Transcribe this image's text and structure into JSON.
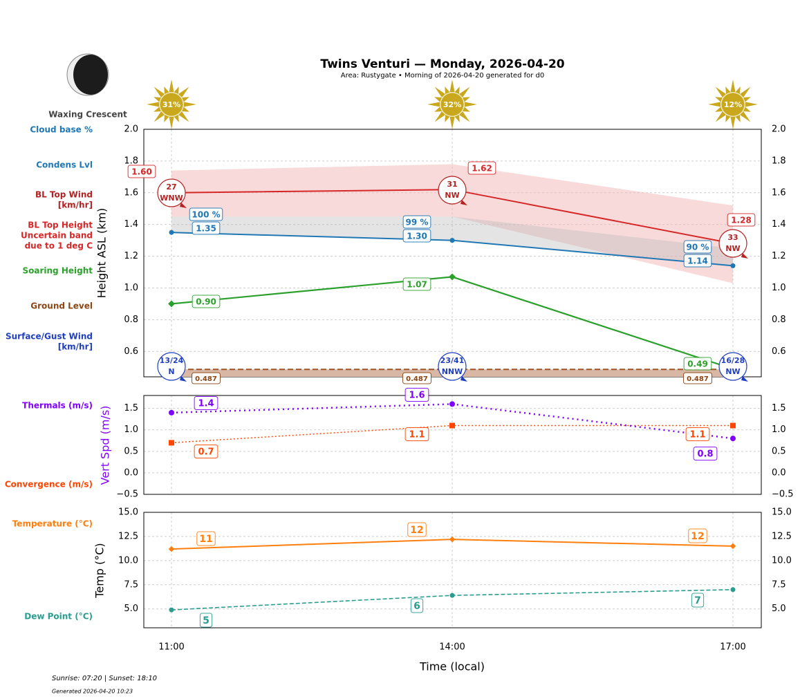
{
  "title": "Twins Venturi — Monday, 2026-04-20",
  "subtitle": "Area: Rustygate • Morning of 2026-04-20 generated for d0",
  "moon_phase": "Waxing Crescent",
  "footer": {
    "sun": "Sunrise: 07:20 | Sunset: 18:10",
    "generated": "Generated 2026-04-20 10:23"
  },
  "side_labels": {
    "cloud_base": "Cloud base %",
    "condens": "Condens Lvl",
    "bl_wind": [
      "BL Top Wind",
      "[km/hr]"
    ],
    "bl_band": [
      "BL Top Height",
      "Uncertain band",
      "due to 1 deg C"
    ],
    "soaring": "Soaring Height",
    "ground": "Ground Level",
    "surface_wind": [
      "Surface/Gust Wind",
      "[km/hr]"
    ],
    "thermals": "Thermals (m/s)",
    "convergence": "Convergence (m/s)",
    "temperature": "Temperature (°C)",
    "dew": "Dew Point (°C)"
  },
  "colors": {
    "bl": "#d62728",
    "condens": "#1f77b4",
    "soaring": "#2ca02c",
    "ground": "#8b4513",
    "surface": "#1f3fbf",
    "thermal": "#8000ff",
    "conv": "#ff4500",
    "temp": "#ff7f0e",
    "dew": "#2a9d8f",
    "sun": "#c9a81e"
  },
  "chart_data": [
    {
      "type": "line",
      "ylabel": "Height ASL (km)",
      "ylim": [
        0.44,
        2.0
      ],
      "yticks": [
        "0.6",
        "0.8",
        "1.0",
        "1.2",
        "1.4",
        "1.6",
        "1.8",
        "2.0"
      ],
      "categories": [
        "11:00",
        "14:00",
        "17:00"
      ],
      "grid": true,
      "sun_percent": [
        31,
        32,
        12
      ],
      "bl_top": [
        1.6,
        1.62,
        1.28
      ],
      "bl_band_upper": [
        1.74,
        1.78,
        1.52
      ],
      "bl_band_lower": [
        1.45,
        1.45,
        1.03
      ],
      "bl_wind": [
        {
          "speed": "27",
          "dir": "WNW"
        },
        {
          "speed": "31",
          "dir": "NW"
        },
        {
          "speed": "33",
          "dir": "NW"
        }
      ],
      "condens": [
        1.35,
        1.3,
        1.14
      ],
      "cloud_base_pct": [
        "100 %",
        "99 %",
        "90 %"
      ],
      "soaring": [
        0.9,
        1.07,
        0.49
      ],
      "ground": [
        0.487,
        0.487,
        0.487
      ],
      "surface_wind": [
        {
          "speed": "13/24",
          "dir": "N"
        },
        {
          "speed": "23/41",
          "dir": "NNW"
        },
        {
          "speed": "16/28",
          "dir": "NW"
        }
      ]
    },
    {
      "type": "line",
      "ylabel": "Vert Spd (m/s)",
      "ylim": [
        -0.5,
        1.8
      ],
      "yticks": [
        "−0.5",
        "0.0",
        "0.5",
        "1.0",
        "1.5"
      ],
      "thermals": [
        1.4,
        1.6,
        0.8
      ],
      "convergence": [
        0.7,
        1.1,
        1.1
      ]
    },
    {
      "type": "line",
      "ylabel": "Temp (°C)",
      "xlabel": "Time (local)",
      "ylim": [
        3.05,
        15
      ],
      "yticks": [
        "5.0",
        "7.5",
        "10.0",
        "12.5",
        "15.0"
      ],
      "temperature": [
        11.2,
        12.2,
        11.5
      ],
      "temperature_labels": [
        "11",
        "12",
        "12"
      ],
      "dew_point": [
        4.9,
        6.4,
        7.0
      ],
      "dew_labels": [
        "5",
        "6",
        "7"
      ]
    }
  ]
}
